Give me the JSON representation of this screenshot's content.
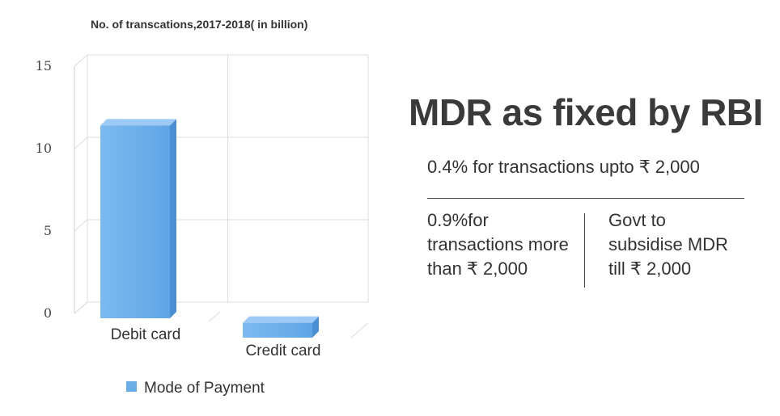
{
  "chart_data": {
    "type": "bar",
    "title": "No. of transcations,2017-2018( in billion)",
    "categories": [
      "Debit card",
      "Credit card"
    ],
    "series": [
      {
        "name": "Mode of Payment",
        "values": [
          11.7,
          0.9
        ]
      }
    ],
    "y_ticks": [
      "0",
      "5",
      "10",
      "15"
    ],
    "ylim": [
      0,
      15
    ],
    "grid": true,
    "legend_position": "bottom-left",
    "bar_color": "#6aaee8"
  },
  "info": {
    "title": "MDR as fixed by RBI",
    "rate_low": "0.4% for transactions upto  ₹ 2,000",
    "rate_high_lines": [
      "0.9%for",
      "transactions more",
      "than ₹ 2,000"
    ],
    "subsidy_lines": [
      "Govt to",
      " subsidise MDR",
      "  till ₹ 2,000"
    ]
  }
}
